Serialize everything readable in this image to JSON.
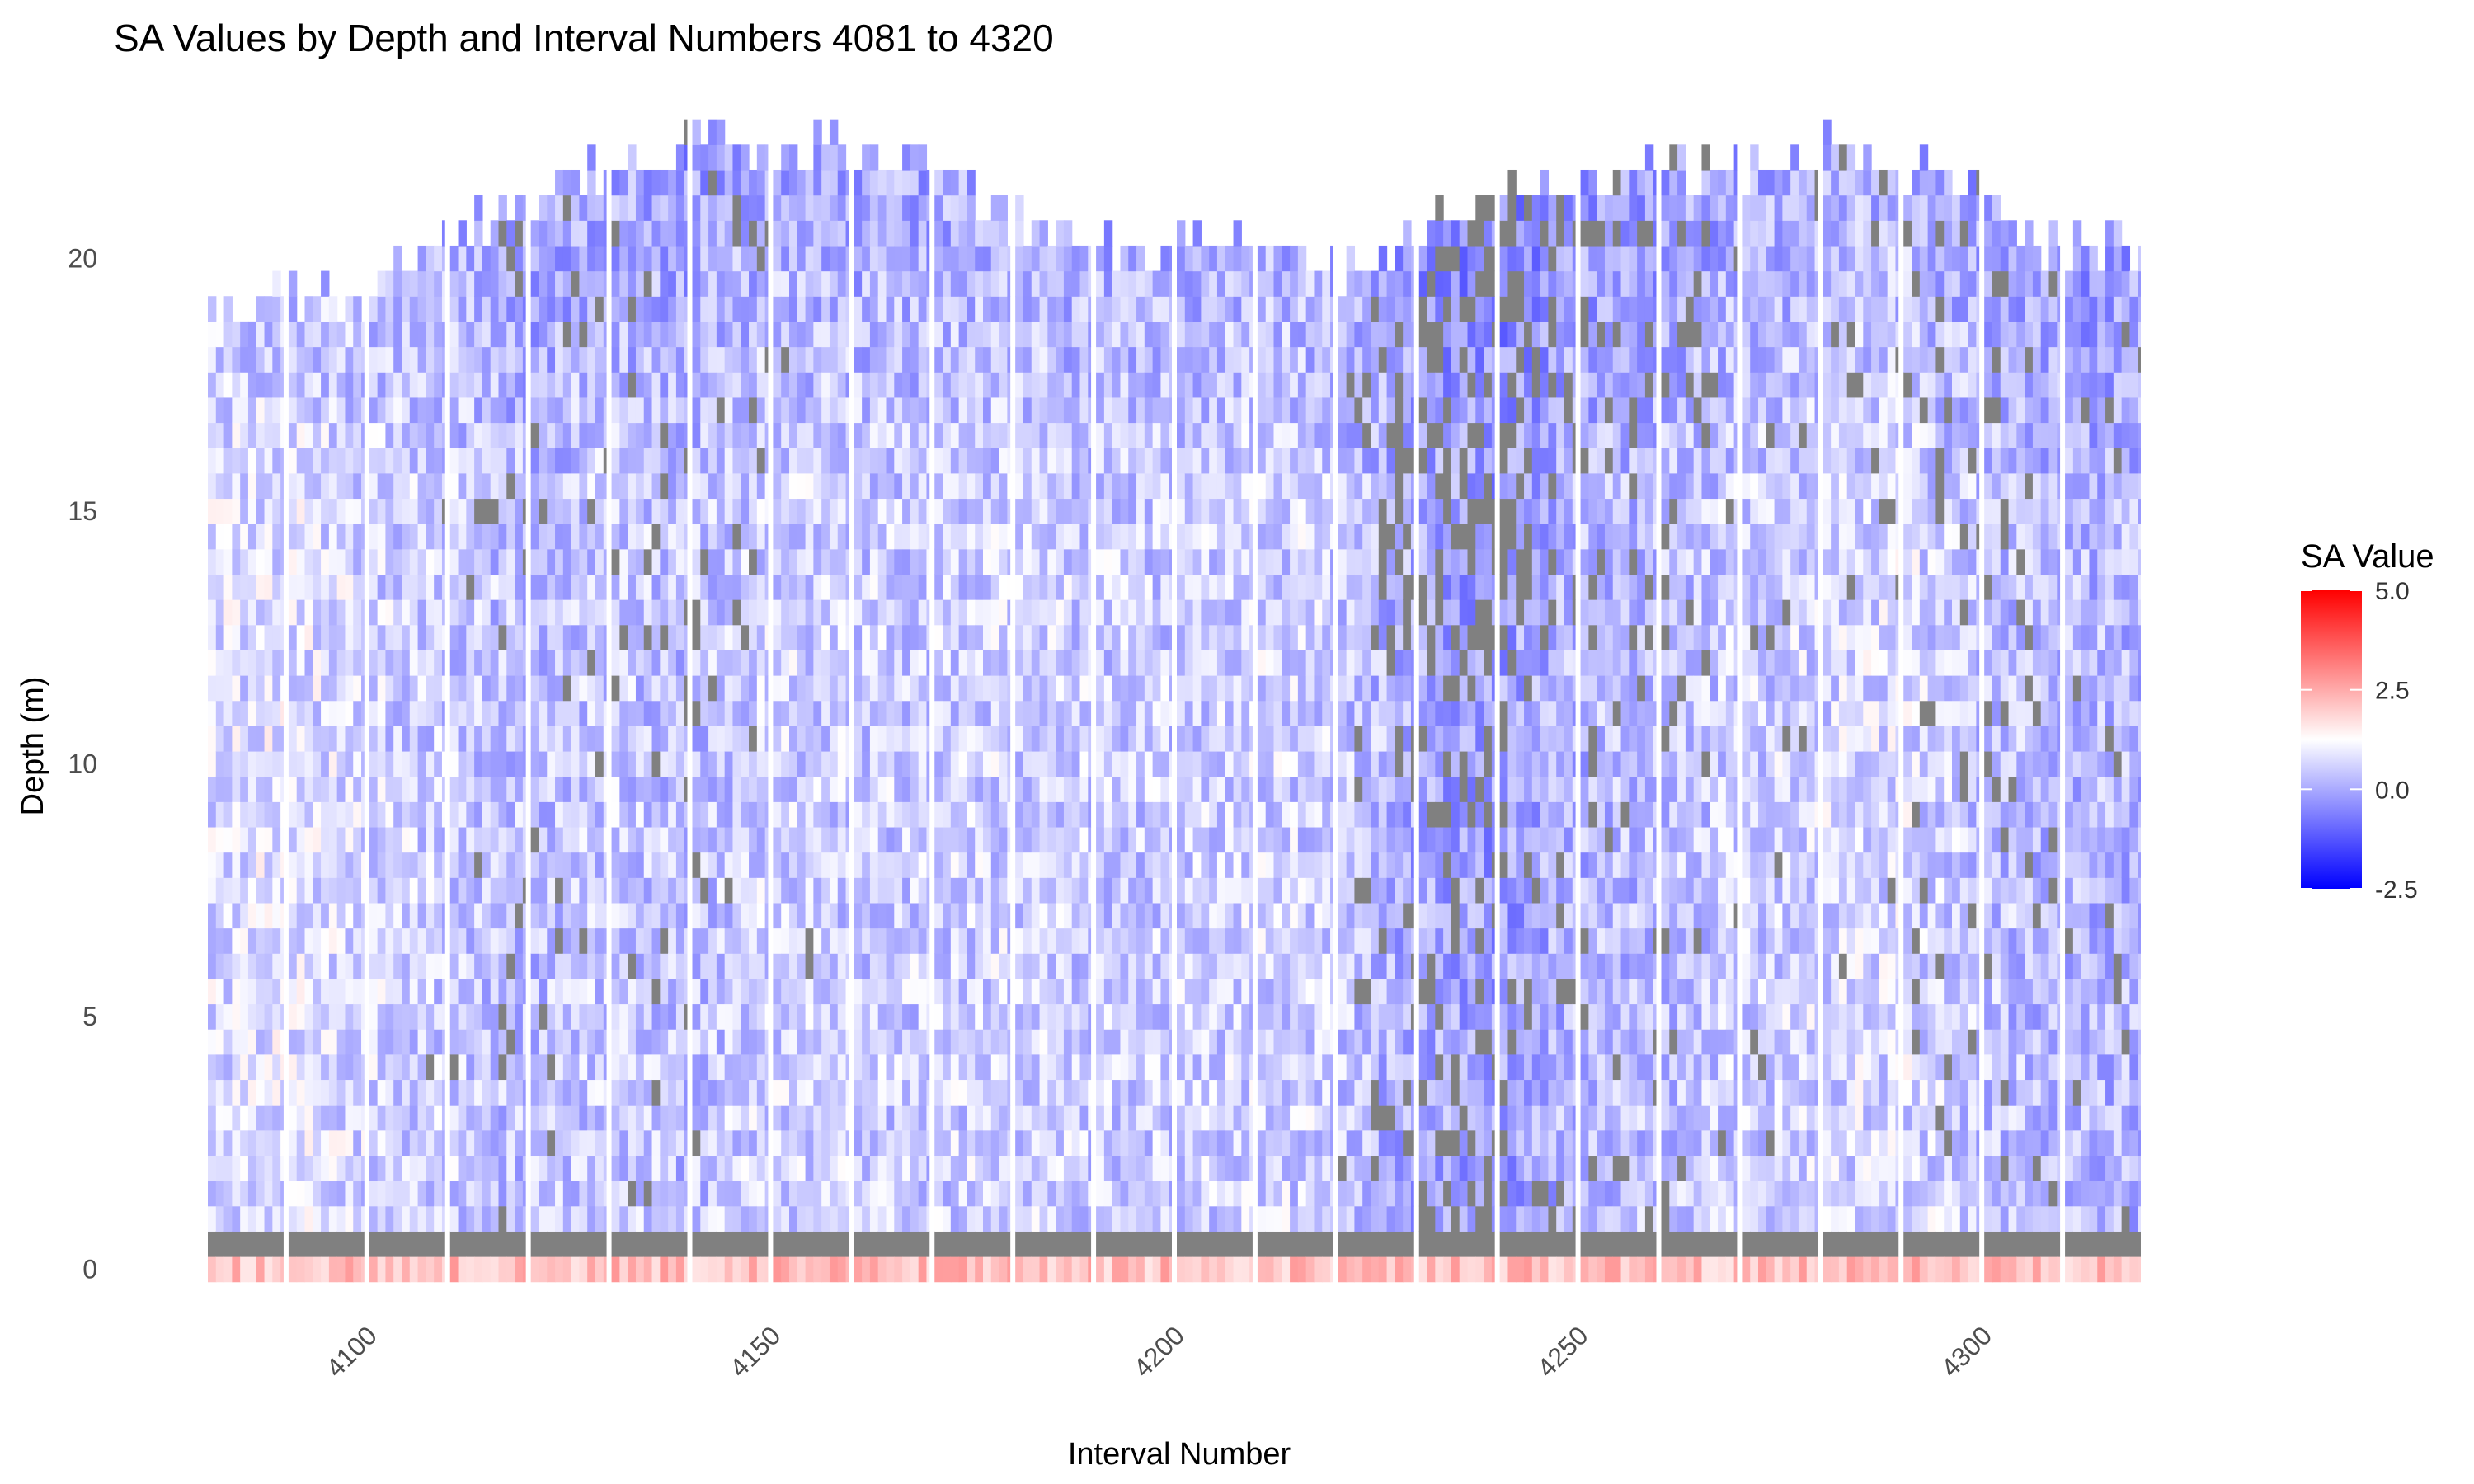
{
  "chart_data": {
    "type": "heatmap",
    "title": "SA Values by Depth and Interval Numbers 4081 to 4320",
    "xlabel": "Interval Number",
    "ylabel": "Depth (m)",
    "x_range": [
      4081,
      4320
    ],
    "xlim": [
      4081,
      4320
    ],
    "ylim": [
      -0.5,
      22.5
    ],
    "x_ticks": [
      4100,
      4150,
      4200,
      4250,
      4300
    ],
    "y_ticks": [
      0,
      5,
      10,
      15,
      20
    ],
    "depth_step": 0.5,
    "block_size": 10,
    "missing_color": "#808080",
    "grid": false,
    "legend": {
      "title": "SA Value",
      "placement": "right",
      "range": [
        -2.5,
        5.0
      ],
      "midpoint": 1.25,
      "ticks": [
        5.0,
        2.5,
        0.0,
        -2.5
      ],
      "tick_labels": [
        "5.0",
        "2.5",
        "0.0",
        "-2.5"
      ],
      "low_color": "#0000ff",
      "mid_color": "#ffffff",
      "high_color": "#ff0000"
    },
    "surface_row": {
      "depth": 0,
      "typical_value": 2.2,
      "description_free": true
    },
    "missing_row": {
      "depth": 0.5,
      "value": null
    },
    "column_profiles": {
      "note_free": true,
      "breakpoints": [
        4081,
        4090,
        4100,
        4110,
        4120,
        4130,
        4140,
        4150,
        4160,
        4170,
        4180,
        4190,
        4200,
        4210,
        4220,
        4230,
        4240,
        4250,
        4260,
        4270,
        4280,
        4290,
        4300,
        4310,
        4320
      ],
      "max_depth": [
        18.5,
        19.0,
        19.0,
        20.0,
        21.0,
        21.5,
        22.0,
        22.0,
        22.0,
        21.5,
        20.5,
        20.0,
        20.0,
        20.0,
        19.5,
        20.5,
        21.0,
        21.5,
        21.5,
        21.5,
        22.0,
        21.5,
        21.0,
        20.0,
        20.0
      ],
      "mean_value": [
        0.7,
        0.8,
        0.6,
        0.5,
        0.3,
        0.5,
        0.3,
        0.6,
        0.5,
        0.5,
        0.6,
        0.5,
        0.5,
        0.6,
        0.5,
        0.0,
        -0.2,
        0.2,
        0.3,
        0.5,
        0.6,
        0.7,
        0.4,
        0.2,
        0.2
      ],
      "missing_rate": [
        0.0,
        0.0,
        0.0,
        0.01,
        0.06,
        0.03,
        0.06,
        0.02,
        0.0,
        0.0,
        0.0,
        0.0,
        0.0,
        0.0,
        0.0,
        0.22,
        0.25,
        0.12,
        0.1,
        0.04,
        0.02,
        0.05,
        0.06,
        0.04,
        0.04
      ]
    }
  }
}
